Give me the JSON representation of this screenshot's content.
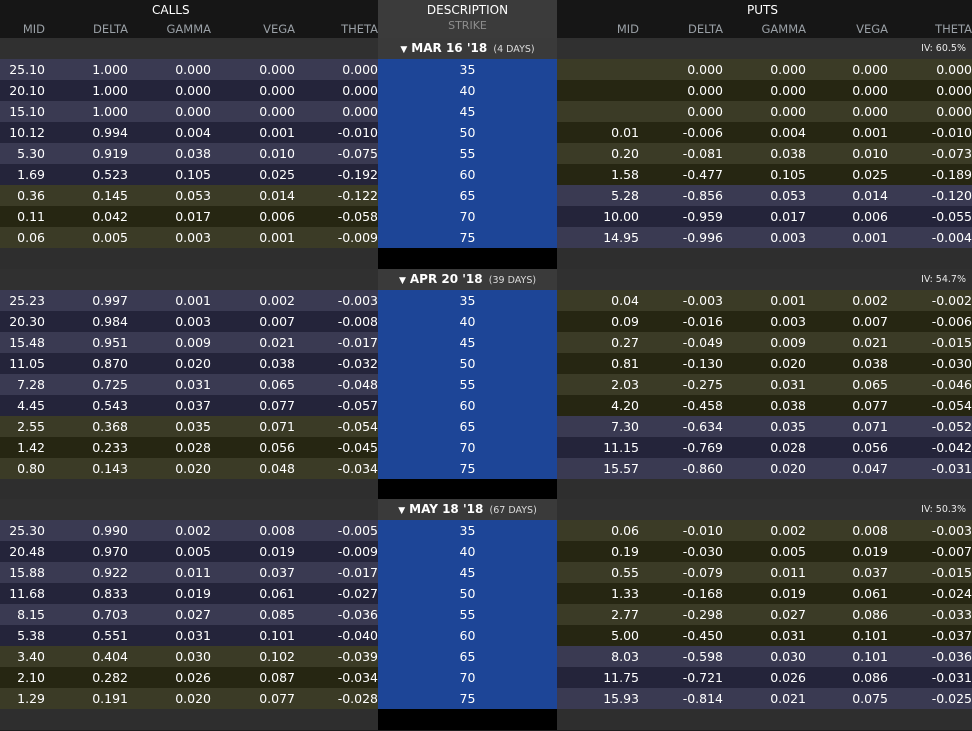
{
  "header": {
    "calls_title": "CALLS",
    "puts_title": "PUTS",
    "description_title": "DESCRIPTION",
    "strike_label": "STRIKE",
    "call_columns": [
      "MID",
      "DELTA",
      "GAMMA",
      "VEGA",
      "THETA"
    ],
    "put_columns": [
      "MID",
      "DELTA",
      "GAMMA",
      "VEGA",
      "THETA"
    ]
  },
  "colors": {
    "strike_bg": "#1d4597",
    "row_blue": "#3a3a52",
    "row_olive": "#3b3b26",
    "row_dark_blue": "#24243a",
    "row_dark_olive": "#262612"
  },
  "expirations": [
    {
      "label": "MAR 16 '18",
      "days": "(4 DAYS)",
      "iv": "IV: 60.5%",
      "rows": [
        {
          "strike": "35",
          "calls": [
            "25.10",
            "1.000",
            "0.000",
            "0.000",
            "0.000"
          ],
          "puts": [
            "",
            "0.000",
            "0.000",
            "0.000",
            "0.000"
          ],
          "cc": "b",
          "pc": "o"
        },
        {
          "strike": "40",
          "calls": [
            "20.10",
            "1.000",
            "0.000",
            "0.000",
            "0.000"
          ],
          "puts": [
            "",
            "0.000",
            "0.000",
            "0.000",
            "0.000"
          ],
          "cc": "db",
          "pc": "do"
        },
        {
          "strike": "45",
          "calls": [
            "15.10",
            "1.000",
            "0.000",
            "0.000",
            "0.000"
          ],
          "puts": [
            "",
            "0.000",
            "0.000",
            "0.000",
            "0.000"
          ],
          "cc": "b",
          "pc": "o"
        },
        {
          "strike": "50",
          "calls": [
            "10.12",
            "0.994",
            "0.004",
            "0.001",
            "-0.010"
          ],
          "puts": [
            "0.01",
            "-0.006",
            "0.004",
            "0.001",
            "-0.010"
          ],
          "cc": "db",
          "pc": "do"
        },
        {
          "strike": "55",
          "calls": [
            "5.30",
            "0.919",
            "0.038",
            "0.010",
            "-0.075"
          ],
          "puts": [
            "0.20",
            "-0.081",
            "0.038",
            "0.010",
            "-0.073"
          ],
          "cc": "b",
          "pc": "o"
        },
        {
          "strike": "60",
          "calls": [
            "1.69",
            "0.523",
            "0.105",
            "0.025",
            "-0.192"
          ],
          "puts": [
            "1.58",
            "-0.477",
            "0.105",
            "0.025",
            "-0.189"
          ],
          "cc": "db",
          "pc": "do"
        },
        {
          "strike": "65",
          "calls": [
            "0.36",
            "0.145",
            "0.053",
            "0.014",
            "-0.122"
          ],
          "puts": [
            "5.28",
            "-0.856",
            "0.053",
            "0.014",
            "-0.120"
          ],
          "cc": "o",
          "pc": "b"
        },
        {
          "strike": "70",
          "calls": [
            "0.11",
            "0.042",
            "0.017",
            "0.006",
            "-0.058"
          ],
          "puts": [
            "10.00",
            "-0.959",
            "0.017",
            "0.006",
            "-0.055"
          ],
          "cc": "do",
          "pc": "db"
        },
        {
          "strike": "75",
          "calls": [
            "0.06",
            "0.005",
            "0.003",
            "0.001",
            "-0.009"
          ],
          "puts": [
            "14.95",
            "-0.996",
            "0.003",
            "0.001",
            "-0.004"
          ],
          "cc": "o",
          "pc": "b"
        }
      ]
    },
    {
      "label": "APR 20 '18",
      "days": "(39 DAYS)",
      "iv": "IV: 54.7%",
      "rows": [
        {
          "strike": "35",
          "calls": [
            "25.23",
            "0.997",
            "0.001",
            "0.002",
            "-0.003"
          ],
          "puts": [
            "0.04",
            "-0.003",
            "0.001",
            "0.002",
            "-0.002"
          ],
          "cc": "b",
          "pc": "o"
        },
        {
          "strike": "40",
          "calls": [
            "20.30",
            "0.984",
            "0.003",
            "0.007",
            "-0.008"
          ],
          "puts": [
            "0.09",
            "-0.016",
            "0.003",
            "0.007",
            "-0.006"
          ],
          "cc": "db",
          "pc": "do"
        },
        {
          "strike": "45",
          "calls": [
            "15.48",
            "0.951",
            "0.009",
            "0.021",
            "-0.017"
          ],
          "puts": [
            "0.27",
            "-0.049",
            "0.009",
            "0.021",
            "-0.015"
          ],
          "cc": "b",
          "pc": "o"
        },
        {
          "strike": "50",
          "calls": [
            "11.05",
            "0.870",
            "0.020",
            "0.038",
            "-0.032"
          ],
          "puts": [
            "0.81",
            "-0.130",
            "0.020",
            "0.038",
            "-0.030"
          ],
          "cc": "db",
          "pc": "do"
        },
        {
          "strike": "55",
          "calls": [
            "7.28",
            "0.725",
            "0.031",
            "0.065",
            "-0.048"
          ],
          "puts": [
            "2.03",
            "-0.275",
            "0.031",
            "0.065",
            "-0.046"
          ],
          "cc": "b",
          "pc": "o"
        },
        {
          "strike": "60",
          "calls": [
            "4.45",
            "0.543",
            "0.037",
            "0.077",
            "-0.057"
          ],
          "puts": [
            "4.20",
            "-0.458",
            "0.038",
            "0.077",
            "-0.054"
          ],
          "cc": "db",
          "pc": "do"
        },
        {
          "strike": "65",
          "calls": [
            "2.55",
            "0.368",
            "0.035",
            "0.071",
            "-0.054"
          ],
          "puts": [
            "7.30",
            "-0.634",
            "0.035",
            "0.071",
            "-0.052"
          ],
          "cc": "o",
          "pc": "b"
        },
        {
          "strike": "70",
          "calls": [
            "1.42",
            "0.233",
            "0.028",
            "0.056",
            "-0.045"
          ],
          "puts": [
            "11.15",
            "-0.769",
            "0.028",
            "0.056",
            "-0.042"
          ],
          "cc": "do",
          "pc": "db"
        },
        {
          "strike": "75",
          "calls": [
            "0.80",
            "0.143",
            "0.020",
            "0.048",
            "-0.034"
          ],
          "puts": [
            "15.57",
            "-0.860",
            "0.020",
            "0.047",
            "-0.031"
          ],
          "cc": "o",
          "pc": "b"
        }
      ]
    },
    {
      "label": "MAY 18 '18",
      "days": "(67 DAYS)",
      "iv": "IV: 50.3%",
      "rows": [
        {
          "strike": "35",
          "calls": [
            "25.30",
            "0.990",
            "0.002",
            "0.008",
            "-0.005"
          ],
          "puts": [
            "0.06",
            "-0.010",
            "0.002",
            "0.008",
            "-0.003"
          ],
          "cc": "b",
          "pc": "o"
        },
        {
          "strike": "40",
          "calls": [
            "20.48",
            "0.970",
            "0.005",
            "0.019",
            "-0.009"
          ],
          "puts": [
            "0.19",
            "-0.030",
            "0.005",
            "0.019",
            "-0.007"
          ],
          "cc": "db",
          "pc": "do"
        },
        {
          "strike": "45",
          "calls": [
            "15.88",
            "0.922",
            "0.011",
            "0.037",
            "-0.017"
          ],
          "puts": [
            "0.55",
            "-0.079",
            "0.011",
            "0.037",
            "-0.015"
          ],
          "cc": "b",
          "pc": "o"
        },
        {
          "strike": "50",
          "calls": [
            "11.68",
            "0.833",
            "0.019",
            "0.061",
            "-0.027"
          ],
          "puts": [
            "1.33",
            "-0.168",
            "0.019",
            "0.061",
            "-0.024"
          ],
          "cc": "db",
          "pc": "do"
        },
        {
          "strike": "55",
          "calls": [
            "8.15",
            "0.703",
            "0.027",
            "0.085",
            "-0.036"
          ],
          "puts": [
            "2.77",
            "-0.298",
            "0.027",
            "0.086",
            "-0.033"
          ],
          "cc": "b",
          "pc": "o"
        },
        {
          "strike": "60",
          "calls": [
            "5.38",
            "0.551",
            "0.031",
            "0.101",
            "-0.040"
          ],
          "puts": [
            "5.00",
            "-0.450",
            "0.031",
            "0.101",
            "-0.037"
          ],
          "cc": "db",
          "pc": "do"
        },
        {
          "strike": "65",
          "calls": [
            "3.40",
            "0.404",
            "0.030",
            "0.102",
            "-0.039"
          ],
          "puts": [
            "8.03",
            "-0.598",
            "0.030",
            "0.101",
            "-0.036"
          ],
          "cc": "o",
          "pc": "b"
        },
        {
          "strike": "70",
          "calls": [
            "2.10",
            "0.282",
            "0.026",
            "0.087",
            "-0.034"
          ],
          "puts": [
            "11.75",
            "-0.721",
            "0.026",
            "0.086",
            "-0.031"
          ],
          "cc": "do",
          "pc": "db"
        },
        {
          "strike": "75",
          "calls": [
            "1.29",
            "0.191",
            "0.020",
            "0.077",
            "-0.028"
          ],
          "puts": [
            "15.93",
            "-0.814",
            "0.021",
            "0.075",
            "-0.025"
          ],
          "cc": "o",
          "pc": "b"
        }
      ]
    }
  ]
}
